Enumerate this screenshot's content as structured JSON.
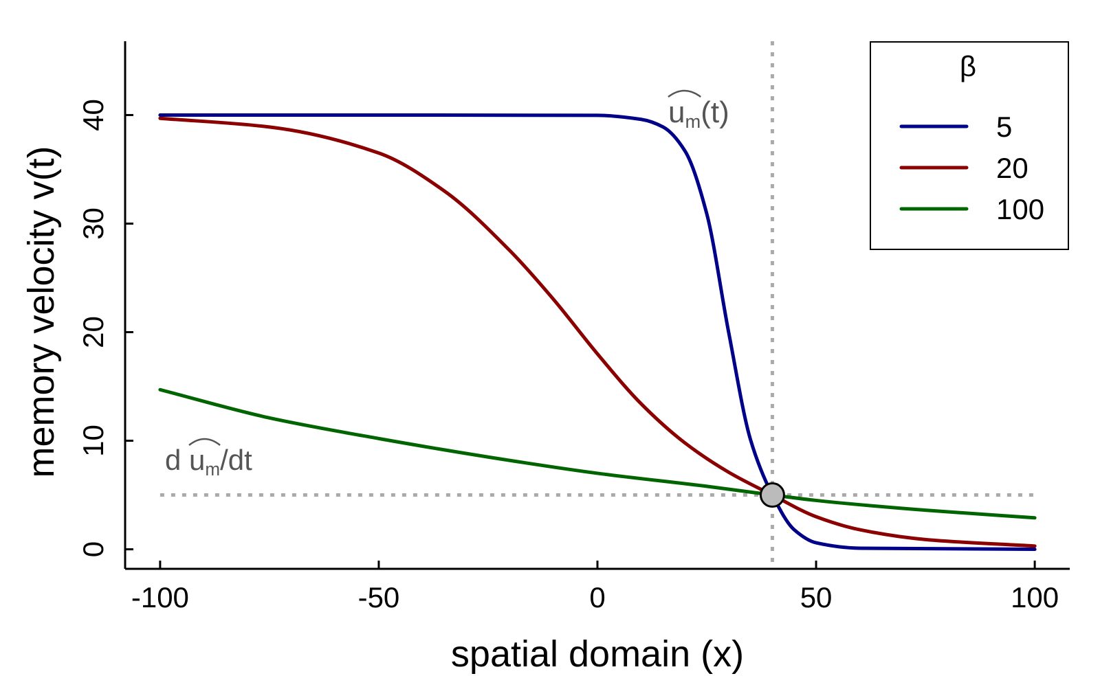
{
  "chart_data": {
    "type": "line",
    "xlabel": "spatial domain (x)",
    "ylabel": "memory velocity v(t)",
    "xlim": [
      -108,
      108
    ],
    "ylim": [
      -1.8,
      46.8
    ],
    "xticks": [
      -100,
      -50,
      0,
      50,
      100
    ],
    "yticks": [
      0,
      10,
      20,
      30,
      40
    ],
    "xtick_labels": [
      "-100",
      "-50",
      "0",
      "50",
      "100"
    ],
    "ytick_labels": [
      "0",
      "10",
      "20",
      "30",
      "40"
    ],
    "grid": false,
    "legend": {
      "title": "β",
      "placement": "top-right"
    },
    "series": [
      {
        "name": "5",
        "color": "#000088",
        "points": [
          [
            -100,
            40.0
          ],
          [
            -50,
            40.0
          ],
          [
            0,
            39.97
          ],
          [
            10,
            39.6
          ],
          [
            15,
            38.9
          ],
          [
            20,
            36.7
          ],
          [
            25,
            30.9
          ],
          [
            30,
            20.0
          ],
          [
            35,
            10.1
          ],
          [
            40,
            5.0
          ],
          [
            45,
            1.8
          ],
          [
            50,
            0.6
          ],
          [
            60,
            0.1
          ],
          [
            100,
            0.0
          ]
        ]
      },
      {
        "name": "20",
        "color": "#8b0000",
        "points": [
          [
            -100,
            39.7
          ],
          [
            -75,
            38.9
          ],
          [
            -50,
            36.5
          ],
          [
            -35,
            33.0
          ],
          [
            -20,
            27.5
          ],
          [
            -10,
            23.0
          ],
          [
            0,
            18.0
          ],
          [
            10,
            13.4
          ],
          [
            20,
            9.8
          ],
          [
            30,
            7.1
          ],
          [
            40,
            5.0
          ],
          [
            50,
            3.0
          ],
          [
            60,
            1.8
          ],
          [
            75,
            0.9
          ],
          [
            100,
            0.3
          ]
        ]
      },
      {
        "name": "100",
        "color": "#006400",
        "points": [
          [
            -100,
            14.7
          ],
          [
            -75,
            12.1
          ],
          [
            -50,
            10.2
          ],
          [
            -25,
            8.5
          ],
          [
            0,
            7.0
          ],
          [
            25,
            5.8
          ],
          [
            40,
            5.0
          ],
          [
            50,
            4.5
          ],
          [
            75,
            3.6
          ],
          [
            100,
            2.9
          ]
        ]
      }
    ],
    "reference_lines": {
      "vertical_x": 40,
      "horizontal_y": 5,
      "color": "#aaaaaa",
      "style": "dotted"
    },
    "marker": {
      "x": 40,
      "y": 5,
      "fill": "#bbbbbb"
    },
    "annotations": {
      "vertical": {
        "prefix": "",
        "hat": "u",
        "sub": "m",
        "suffix": "(t)"
      },
      "horizontal": {
        "prefix": "d ",
        "hat": "u",
        "sub": "m",
        "suffix": "/dt"
      }
    }
  }
}
